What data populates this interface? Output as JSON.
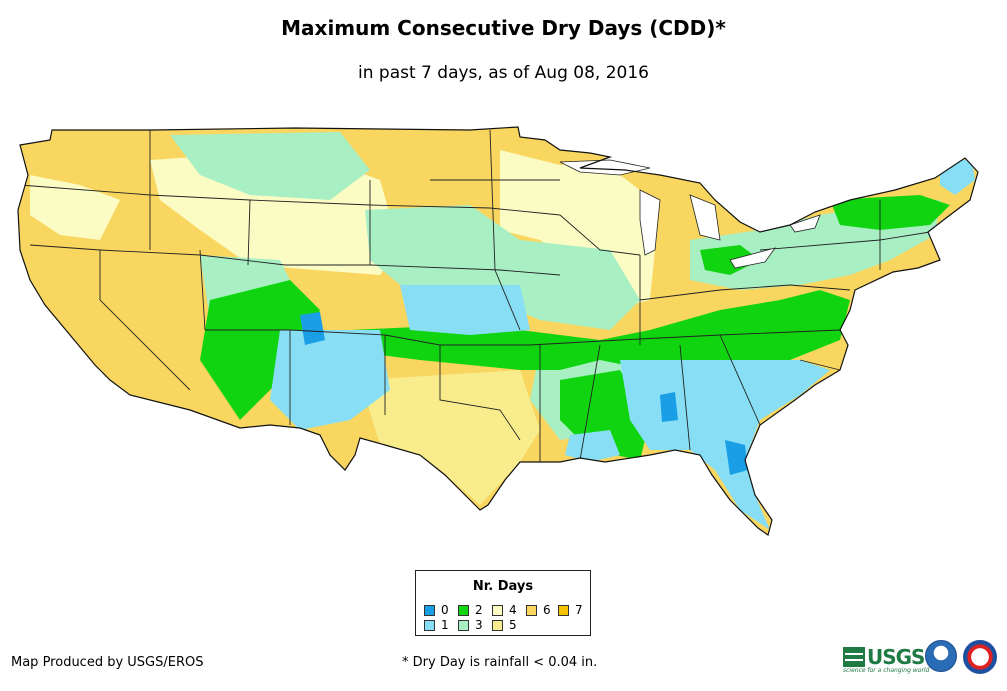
{
  "header": {
    "title": "Maximum Consecutive Dry Days (CDD)*",
    "subtitle": "in past 7 days, as of Aug 08, 2016"
  },
  "legend": {
    "title": "Nr. Days",
    "items": [
      {
        "label": "0",
        "color": "#1a9ee6"
      },
      {
        "label": "1",
        "color": "#88dff5"
      },
      {
        "label": "2",
        "color": "#11d411"
      },
      {
        "label": "3",
        "color": "#a8efc4"
      },
      {
        "label": "4",
        "color": "#fbfbc4"
      },
      {
        "label": "5",
        "color": "#f8ec8c"
      },
      {
        "label": "6",
        "color": "#f8d660"
      },
      {
        "label": "7",
        "color": "#f6c300"
      }
    ]
  },
  "footer": {
    "credit": "Map Produced by USGS/EROS",
    "footnote": "* Dry Day is rainfall < 0.04 in."
  },
  "logos": {
    "usgs": "USGS",
    "usgs_tagline": "science for a changing world",
    "noaa": "noaa-logo",
    "nws": "nws-logo"
  }
}
